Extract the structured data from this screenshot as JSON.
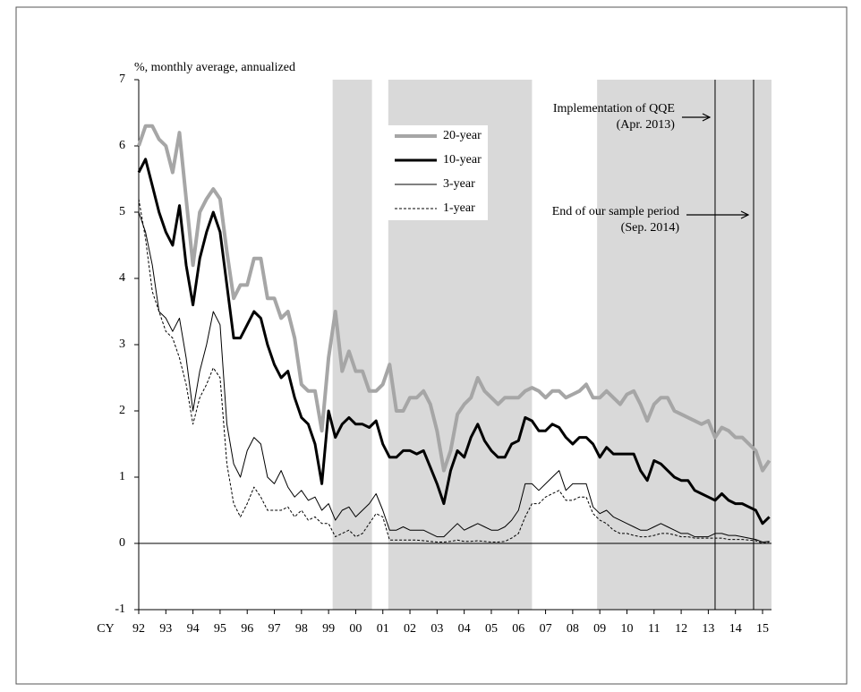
{
  "chart_data": {
    "type": "line",
    "y_label": "%, monthly average, annualized",
    "x_label": "CY",
    "x": [
      1992,
      1992.25,
      1992.5,
      1992.75,
      1993,
      1993.25,
      1993.5,
      1993.75,
      1994,
      1994.25,
      1994.5,
      1994.75,
      1995,
      1995.25,
      1995.5,
      1995.75,
      1996,
      1996.25,
      1996.5,
      1996.75,
      1997,
      1997.25,
      1997.5,
      1997.75,
      1998,
      1998.25,
      1998.5,
      1998.75,
      1999,
      1999.25,
      1999.5,
      1999.75,
      2000,
      2000.25,
      2000.5,
      2000.75,
      2001,
      2001.25,
      2001.5,
      2001.75,
      2002,
      2002.25,
      2002.5,
      2002.75,
      2003,
      2003.25,
      2003.5,
      2003.75,
      2004,
      2004.25,
      2004.5,
      2004.75,
      2005,
      2005.25,
      2005.5,
      2005.75,
      2006,
      2006.25,
      2006.5,
      2006.75,
      2007,
      2007.25,
      2007.5,
      2007.75,
      2008,
      2008.25,
      2008.5,
      2008.75,
      2009,
      2009.25,
      2009.5,
      2009.75,
      2010,
      2010.25,
      2010.5,
      2010.75,
      2011,
      2011.25,
      2011.5,
      2011.75,
      2012,
      2012.25,
      2012.5,
      2012.75,
      2013,
      2013.25,
      2013.5,
      2013.75,
      2014,
      2014.25,
      2014.5,
      2014.75,
      2015,
      2015.25
    ],
    "series": [
      {
        "name": "20-year",
        "color": "#a6a6a6",
        "width": 4,
        "dashed": false,
        "values": [
          6.0,
          6.3,
          6.3,
          6.1,
          6.0,
          5.6,
          6.2,
          5.2,
          4.2,
          5.0,
          5.2,
          5.35,
          5.2,
          4.4,
          3.7,
          3.9,
          3.9,
          4.3,
          4.3,
          3.7,
          3.7,
          3.4,
          3.5,
          3.1,
          2.4,
          2.3,
          2.3,
          1.7,
          2.8,
          3.5,
          2.6,
          2.9,
          2.6,
          2.6,
          2.3,
          2.3,
          2.4,
          2.7,
          2.0,
          2.0,
          2.2,
          2.2,
          2.3,
          2.1,
          1.7,
          1.1,
          1.4,
          1.95,
          2.1,
          2.2,
          2.5,
          2.3,
          2.2,
          2.1,
          2.2,
          2.2,
          2.2,
          2.3,
          2.35,
          2.3,
          2.2,
          2.3,
          2.3,
          2.2,
          2.25,
          2.3,
          2.4,
          2.2,
          2.2,
          2.3,
          2.2,
          2.1,
          2.25,
          2.3,
          2.1,
          1.85,
          2.1,
          2.2,
          2.2,
          2.0,
          1.95,
          1.9,
          1.85,
          1.8,
          1.85,
          1.6,
          1.75,
          1.7,
          1.6,
          1.6,
          1.5,
          1.4,
          1.1,
          1.25
        ]
      },
      {
        "name": "10-year",
        "color": "#000000",
        "width": 3,
        "dashed": false,
        "values": [
          5.6,
          5.8,
          5.4,
          5.0,
          4.7,
          4.5,
          5.1,
          4.2,
          3.6,
          4.3,
          4.7,
          5.0,
          4.7,
          3.9,
          3.1,
          3.1,
          3.3,
          3.5,
          3.4,
          3.0,
          2.7,
          2.5,
          2.6,
          2.2,
          1.9,
          1.8,
          1.5,
          0.9,
          2.0,
          1.6,
          1.8,
          1.9,
          1.8,
          1.8,
          1.75,
          1.85,
          1.5,
          1.3,
          1.3,
          1.4,
          1.4,
          1.35,
          1.4,
          1.15,
          0.9,
          0.6,
          1.1,
          1.4,
          1.3,
          1.6,
          1.8,
          1.55,
          1.4,
          1.3,
          1.3,
          1.5,
          1.55,
          1.9,
          1.85,
          1.7,
          1.7,
          1.8,
          1.75,
          1.6,
          1.5,
          1.6,
          1.6,
          1.5,
          1.3,
          1.45,
          1.35,
          1.35,
          1.35,
          1.35,
          1.1,
          0.95,
          1.25,
          1.2,
          1.1,
          1.0,
          0.95,
          0.95,
          0.8,
          0.75,
          0.7,
          0.65,
          0.75,
          0.65,
          0.6,
          0.6,
          0.55,
          0.5,
          0.3,
          0.4
        ]
      },
      {
        "name": "3-year",
        "color": "#000000",
        "width": 1,
        "dashed": false,
        "values": [
          5.0,
          4.7,
          4.2,
          3.5,
          3.4,
          3.2,
          3.4,
          2.8,
          2.0,
          2.6,
          3.0,
          3.5,
          3.3,
          1.8,
          1.2,
          1.0,
          1.4,
          1.6,
          1.5,
          1.0,
          0.9,
          1.1,
          0.85,
          0.7,
          0.8,
          0.65,
          0.7,
          0.5,
          0.6,
          0.35,
          0.5,
          0.55,
          0.4,
          0.5,
          0.6,
          0.75,
          0.5,
          0.2,
          0.2,
          0.25,
          0.2,
          0.2,
          0.2,
          0.15,
          0.1,
          0.1,
          0.2,
          0.3,
          0.2,
          0.25,
          0.3,
          0.25,
          0.2,
          0.2,
          0.25,
          0.35,
          0.5,
          0.9,
          0.9,
          0.8,
          0.9,
          1.0,
          1.1,
          0.8,
          0.9,
          0.9,
          0.9,
          0.55,
          0.45,
          0.5,
          0.4,
          0.35,
          0.3,
          0.25,
          0.2,
          0.2,
          0.25,
          0.3,
          0.25,
          0.2,
          0.15,
          0.15,
          0.1,
          0.1,
          0.1,
          0.15,
          0.15,
          0.12,
          0.12,
          0.1,
          0.08,
          0.06,
          0.02,
          0.03
        ]
      },
      {
        "name": "1-year",
        "color": "#000000",
        "width": 1,
        "dashed": true,
        "values": [
          5.2,
          4.6,
          3.8,
          3.5,
          3.2,
          3.1,
          2.8,
          2.4,
          1.8,
          2.2,
          2.4,
          2.65,
          2.5,
          1.2,
          0.6,
          0.4,
          0.6,
          0.85,
          0.7,
          0.5,
          0.5,
          0.5,
          0.55,
          0.4,
          0.5,
          0.35,
          0.4,
          0.3,
          0.3,
          0.1,
          0.15,
          0.2,
          0.1,
          0.15,
          0.3,
          0.45,
          0.4,
          0.05,
          0.05,
          0.05,
          0.05,
          0.05,
          0.04,
          0.03,
          0.02,
          0.02,
          0.03,
          0.05,
          0.03,
          0.03,
          0.04,
          0.03,
          0.02,
          0.02,
          0.03,
          0.08,
          0.15,
          0.4,
          0.6,
          0.6,
          0.7,
          0.75,
          0.8,
          0.65,
          0.65,
          0.7,
          0.7,
          0.45,
          0.35,
          0.3,
          0.2,
          0.15,
          0.15,
          0.12,
          0.1,
          0.1,
          0.12,
          0.15,
          0.15,
          0.13,
          0.1,
          0.1,
          0.08,
          0.08,
          0.08,
          0.08,
          0.08,
          0.06,
          0.06,
          0.06,
          0.05,
          0.04,
          0.0,
          0.02
        ]
      }
    ],
    "shaded_periods": [
      [
        1999.15,
        2000.6
      ],
      [
        2001.2,
        2006.5
      ],
      [
        2008.9,
        2015.33
      ]
    ],
    "annotations": [
      {
        "lines": [
          "Implementation of QQE",
          "(Apr. 2013)"
        ],
        "x": 2013.25
      },
      {
        "lines": [
          "End of our sample period",
          "(Sep. 2014)"
        ],
        "x": 2014.67
      }
    ],
    "xlim": [
      1992,
      2015.33
    ],
    "ylim": [
      -1,
      7
    ],
    "yticks": [
      -1,
      0,
      1,
      2,
      3,
      4,
      5,
      6,
      7
    ],
    "xticks": [
      {
        "value": 1992,
        "label": "92"
      },
      {
        "value": 1993,
        "label": "93"
      },
      {
        "value": 1994,
        "label": "94"
      },
      {
        "value": 1995,
        "label": "95"
      },
      {
        "value": 1996,
        "label": "96"
      },
      {
        "value": 1997,
        "label": "97"
      },
      {
        "value": 1998,
        "label": "98"
      },
      {
        "value": 1999,
        "label": "99"
      },
      {
        "value": 2000,
        "label": "00"
      },
      {
        "value": 2001,
        "label": "01"
      },
      {
        "value": 2002,
        "label": "02"
      },
      {
        "value": 2003,
        "label": "03"
      },
      {
        "value": 2004,
        "label": "04"
      },
      {
        "value": 2005,
        "label": "05"
      },
      {
        "value": 2006,
        "label": "06"
      },
      {
        "value": 2007,
        "label": "07"
      },
      {
        "value": 2008,
        "label": "08"
      },
      {
        "value": 2009,
        "label": "09"
      },
      {
        "value": 2010,
        "label": "10"
      },
      {
        "value": 2011,
        "label": "11"
      },
      {
        "value": 2012,
        "label": "12"
      },
      {
        "value": 2013,
        "label": "13"
      },
      {
        "value": 2014,
        "label": "14"
      },
      {
        "value": 2015,
        "label": "15"
      }
    ],
    "legend": "upper-center"
  }
}
